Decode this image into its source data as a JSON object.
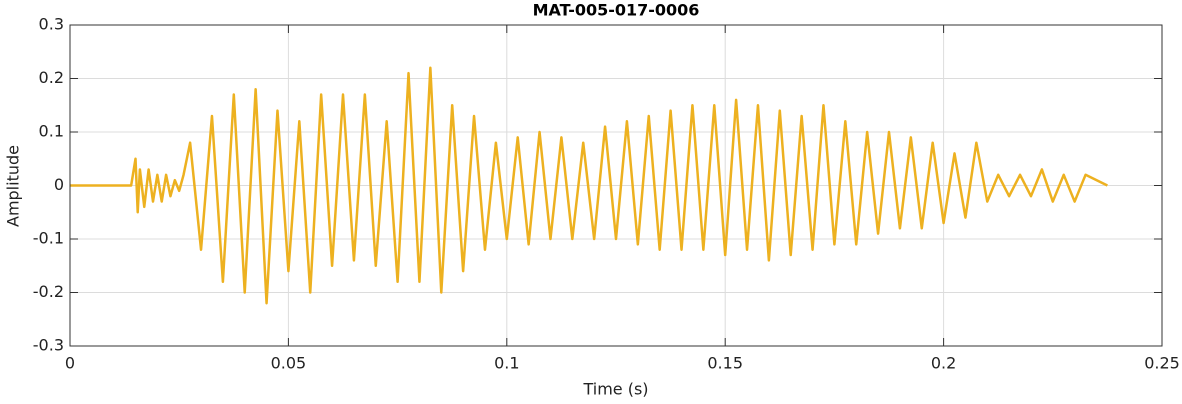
{
  "chart_data": {
    "type": "line",
    "title": "MAT-005-017-0006",
    "x_label": "Time (s)",
    "y_label": "Amplitude",
    "color": "#EDB120",
    "grid": true,
    "xlim": [
      0,
      0.25
    ],
    "xticks": [
      0,
      0.05,
      0.1,
      0.15,
      0.2,
      0.25
    ],
    "ylim": [
      -0.3,
      0.3
    ],
    "yticks": [
      -0.3,
      -0.2,
      -0.1,
      0,
      0.1,
      0.2,
      0.3
    ],
    "x": [
      0,
      0.014,
      0.015,
      0.0155,
      0.016,
      0.017,
      0.018,
      0.019,
      0.02,
      0.021,
      0.022,
      0.023,
      0.024,
      0.025,
      0.026,
      0.0275,
      0.03,
      0.0325,
      0.035,
      0.0375,
      0.04,
      0.0425,
      0.045,
      0.0475,
      0.05,
      0.0525,
      0.055,
      0.0575,
      0.06,
      0.0625,
      0.065,
      0.0675,
      0.07,
      0.0725,
      0.075,
      0.0775,
      0.08,
      0.0825,
      0.085,
      0.0875,
      0.09,
      0.0925,
      0.095,
      0.0975,
      0.1,
      0.1025,
      0.105,
      0.1075,
      0.11,
      0.1125,
      0.115,
      0.1175,
      0.12,
      0.1225,
      0.125,
      0.1275,
      0.13,
      0.1325,
      0.135,
      0.1375,
      0.14,
      0.1425,
      0.145,
      0.1475,
      0.15,
      0.1525,
      0.155,
      0.1575,
      0.16,
      0.1625,
      0.165,
      0.1675,
      0.17,
      0.1725,
      0.175,
      0.1775,
      0.18,
      0.1825,
      0.185,
      0.1875,
      0.19,
      0.1925,
      0.195,
      0.1975,
      0.2,
      0.2025,
      0.205,
      0.2075,
      0.21,
      0.2125,
      0.215,
      0.2175,
      0.22,
      0.2225,
      0.225,
      0.2275,
      0.23,
      0.2325,
      0.235,
      0.2375
    ],
    "values": [
      0,
      0,
      0.05,
      -0.05,
      0.03,
      -0.04,
      0.03,
      -0.03,
      0.02,
      -0.03,
      0.02,
      -0.02,
      0.01,
      -0.01,
      0.02,
      0.08,
      -0.12,
      0.13,
      -0.18,
      0.17,
      -0.2,
      0.18,
      -0.22,
      0.14,
      -0.16,
      0.12,
      -0.2,
      0.17,
      -0.15,
      0.17,
      -0.14,
      0.17,
      -0.15,
      0.12,
      -0.18,
      0.21,
      -0.18,
      0.22,
      -0.2,
      0.15,
      -0.16,
      0.13,
      -0.12,
      0.08,
      -0.1,
      0.09,
      -0.11,
      0.1,
      -0.1,
      0.09,
      -0.1,
      0.08,
      -0.1,
      0.11,
      -0.1,
      0.12,
      -0.11,
      0.13,
      -0.12,
      0.14,
      -0.12,
      0.15,
      -0.12,
      0.15,
      -0.13,
      0.16,
      -0.12,
      0.15,
      -0.14,
      0.14,
      -0.13,
      0.13,
      -0.12,
      0.15,
      -0.11,
      0.12,
      -0.11,
      0.1,
      -0.09,
      0.1,
      -0.08,
      0.09,
      -0.08,
      0.08,
      -0.07,
      0.06,
      -0.06,
      0.08,
      -0.03,
      0.02,
      -0.02,
      0.02,
      -0.02,
      0.03,
      -0.03,
      0.02,
      -0.03,
      0.02,
      0.01,
      0
    ]
  }
}
